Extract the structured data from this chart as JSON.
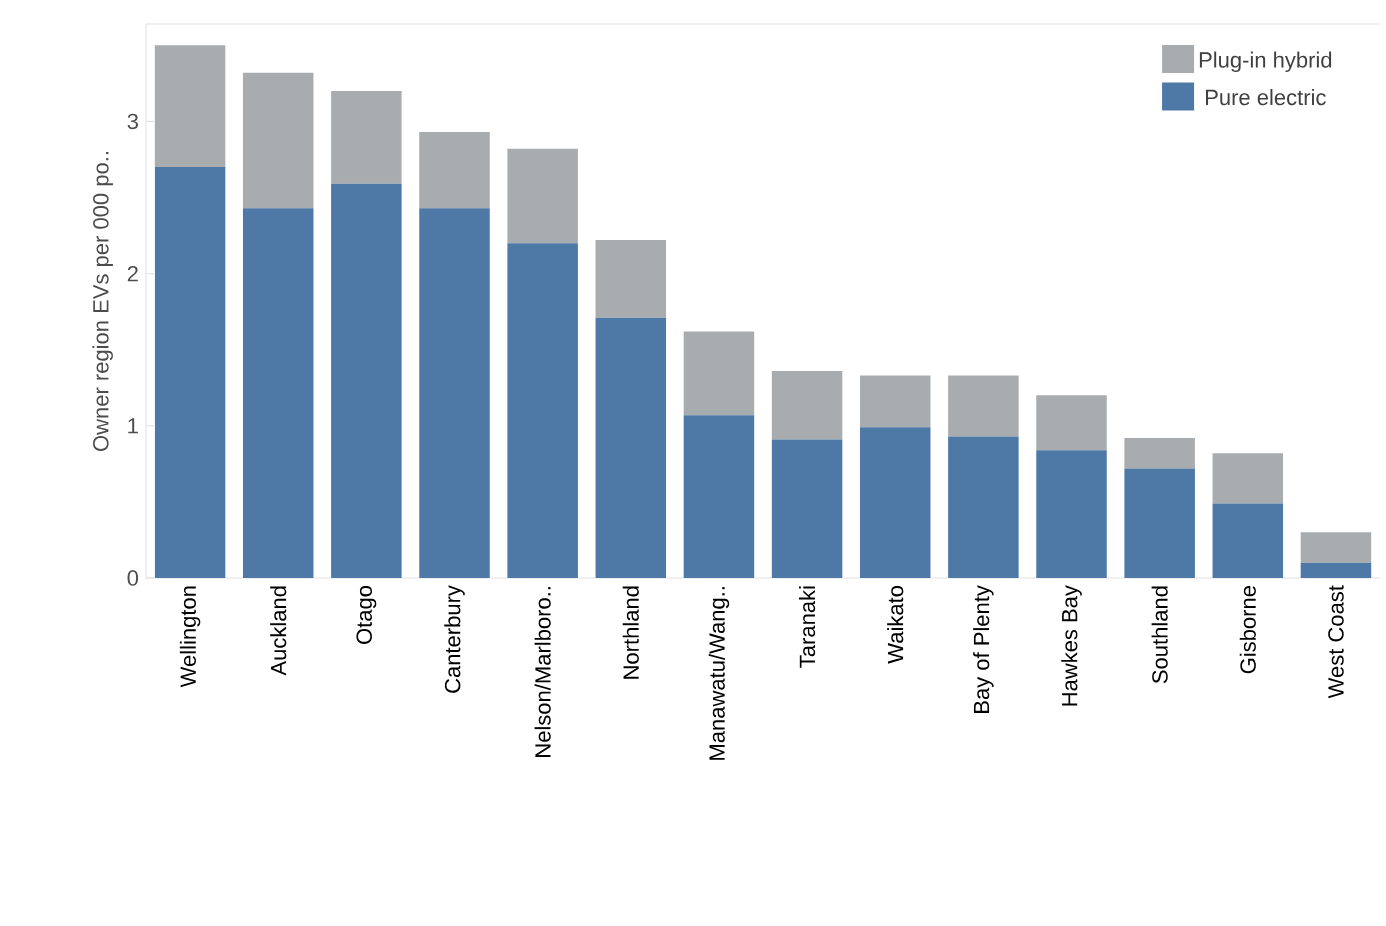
{
  "chart_data": {
    "type": "bar",
    "stacked": true,
    "ylabel": "Owner region EVs per 000 po..",
    "categories": [
      "Wellington",
      "Auckland",
      "Otago",
      "Canterbury",
      "Nelson/Marlboro..",
      "Northland",
      "Manawatu/Wang..",
      "Taranaki",
      "Waikato",
      "Bay of Plenty",
      "Hawkes Bay",
      "Southland",
      "Gisborne",
      "West Coast"
    ],
    "series": [
      {
        "name": "Pure electric",
        "color": "#4e79a7",
        "values": [
          2.7,
          2.43,
          2.59,
          2.43,
          2.2,
          1.71,
          1.07,
          0.91,
          0.99,
          0.93,
          0.84,
          0.72,
          0.49,
          0.1
        ]
      },
      {
        "name": "Plug-in hybrid",
        "color": "#a9acae",
        "values": [
          0.8,
          0.89,
          0.61,
          0.5,
          0.62,
          0.51,
          0.55,
          0.45,
          0.34,
          0.4,
          0.36,
          0.2,
          0.33,
          0.2
        ]
      }
    ],
    "ylim": [
      0,
      3.64
    ],
    "yticks": [
      0,
      1,
      2,
      3
    ],
    "grid": false,
    "legend": "top right"
  }
}
